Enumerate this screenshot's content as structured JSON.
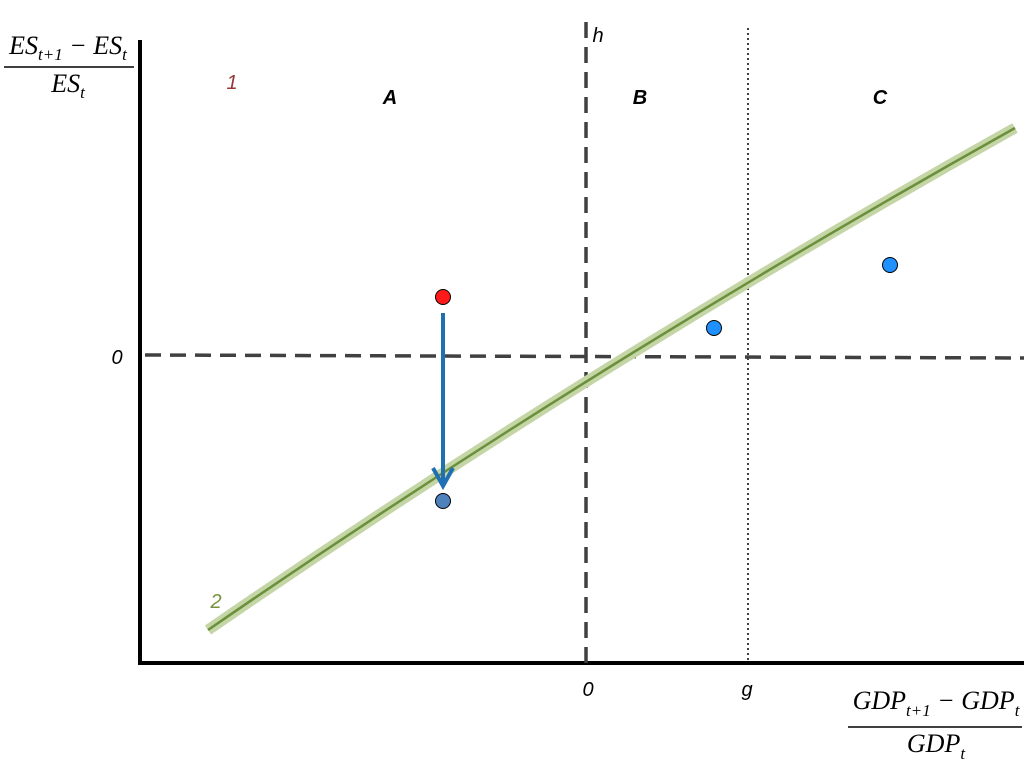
{
  "y_axis_label": {
    "numerator": [
      "ES",
      "t+1",
      " − ES",
      "t"
    ],
    "denominator": [
      "ES",
      "t"
    ]
  },
  "x_axis_label": {
    "numerator": [
      "GDP",
      "t+1",
      " − GDP",
      "t"
    ],
    "denominator": [
      "GDP",
      "t"
    ]
  },
  "region_labels": [
    "A",
    "B",
    "C"
  ],
  "line_labels": {
    "horizontal_line": "1",
    "curve": "2",
    "vertical_dashed": "h",
    "dotted": "g"
  },
  "zero_labels": {
    "y": "0",
    "x": "0"
  }
}
